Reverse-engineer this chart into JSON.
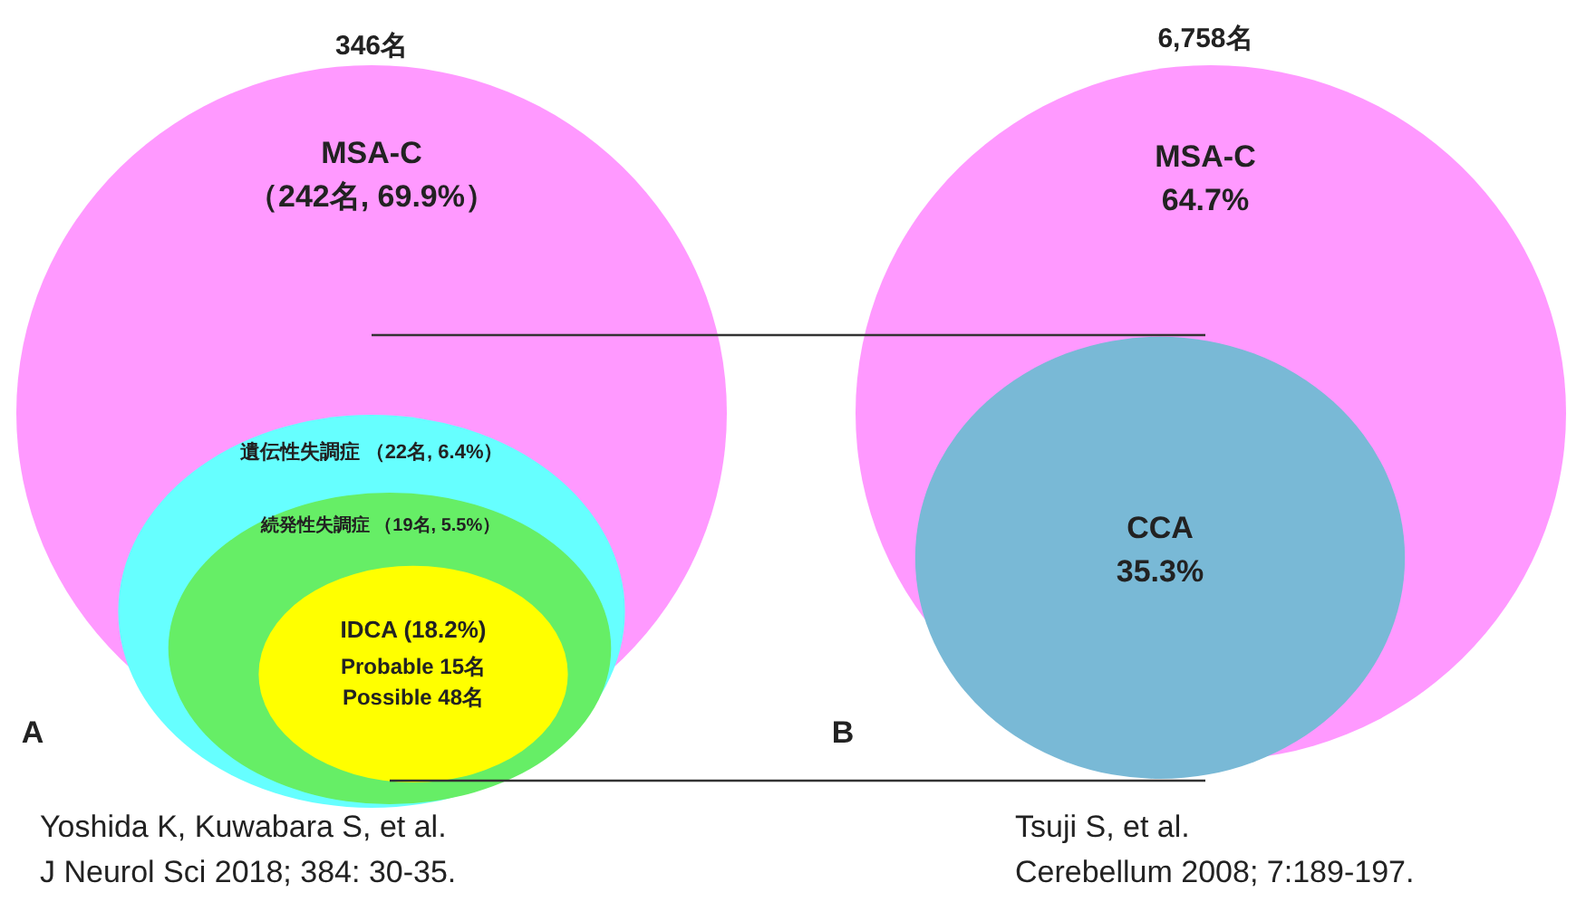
{
  "chart_data": [
    {
      "type": "other",
      "title": "346名",
      "categories": [
        "MSA-C",
        "遺伝性失調症",
        "続発性失調症",
        "IDCA"
      ],
      "values": [
        69.9,
        6.4,
        5.5,
        18.2
      ],
      "value_labels": [
        "（242名, 69.9%）",
        "（22名, 6.4%）",
        "（19名, 5.5%）",
        "(18.2%)"
      ],
      "colors": [
        "#ff99ff",
        "#66ffff",
        "#66ee66",
        "#ffff00"
      ],
      "annotations": [
        "Probable 15名",
        "Possible 48名",
        "A",
        "Yoshida K, Kuwabara S, et al.",
        "J Neurol Sci 2018; 384: 30-35."
      ]
    },
    {
      "type": "other",
      "title": "6,758名",
      "categories": [
        "MSA-C",
        "CCA"
      ],
      "values": [
        64.7,
        35.3
      ],
      "value_labels": [
        "64.7%",
        "35.3%"
      ],
      "colors": [
        "#ff99ff",
        "#79b9d6"
      ],
      "annotations": [
        "B",
        "Tsuji S, et al.",
        "Cerebellum 2008; 7:189-197."
      ]
    }
  ]
}
